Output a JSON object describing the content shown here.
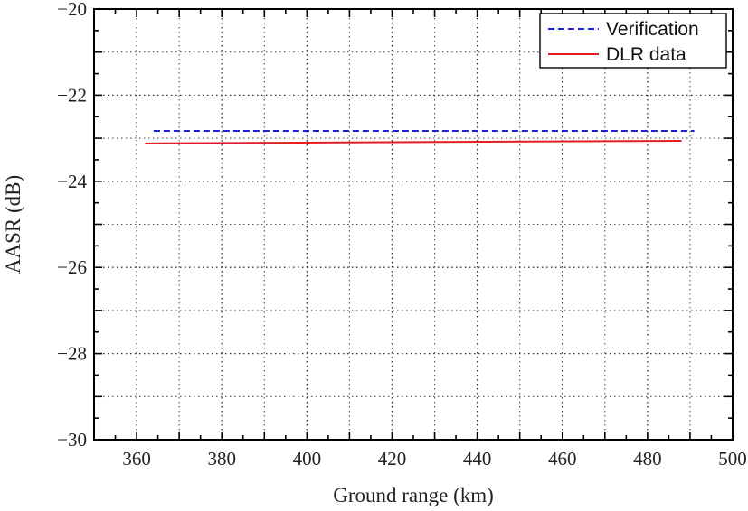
{
  "chart_data": {
    "type": "line",
    "title": "",
    "xlabel": "Ground range (km)",
    "ylabel": "AASR (dB)",
    "xlim": [
      350,
      500
    ],
    "ylim": [
      -30,
      -20
    ],
    "x_ticks": [
      360,
      380,
      400,
      420,
      440,
      460,
      480,
      500
    ],
    "x_tick_labels": [
      "360",
      "380",
      "400",
      "420",
      "440",
      "460",
      "480",
      "500"
    ],
    "y_ticks": [
      -30,
      -28,
      -26,
      -24,
      -22,
      -20
    ],
    "y_tick_labels": [
      "−30",
      "−28",
      "−26",
      "−24",
      "−22",
      "−20"
    ],
    "grid": true,
    "legend_position": "top-right",
    "series": [
      {
        "name": "Verification",
        "color": "#1f1fd6",
        "style": "dashed",
        "x": [
          364,
          491
        ],
        "y": [
          -22.83,
          -22.83
        ]
      },
      {
        "name": "DLR data",
        "color": "#e02020",
        "style": "solid",
        "x": [
          362,
          488
        ],
        "y": [
          -23.12,
          -23.06
        ]
      }
    ]
  }
}
